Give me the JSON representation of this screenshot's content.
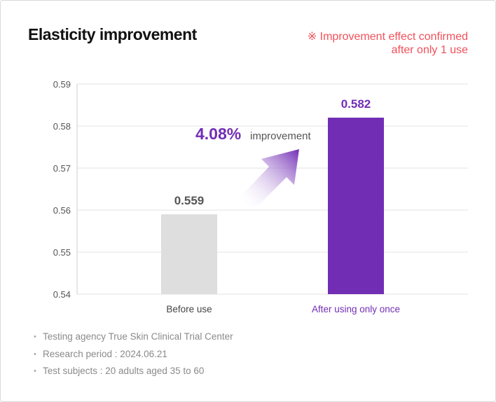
{
  "title": "Elasticity improvement",
  "note": {
    "mark": "※",
    "line1": "Improvement effect confirmed",
    "line2": "after only 1 use"
  },
  "colors": {
    "before_bar": "#dedede",
    "after_bar": "#722db5",
    "accent_purple": "#722db5",
    "note_red": "#f2505a"
  },
  "chart_data": {
    "type": "bar",
    "categories": [
      "Before use",
      "After using only once"
    ],
    "values": [
      0.559,
      0.582
    ],
    "value_labels": [
      "0.559",
      "0.582"
    ],
    "ylim": [
      0.54,
      0.59
    ],
    "yticks": [
      "0.59",
      "0.58",
      "0.57",
      "0.56",
      "0.55",
      "0.54"
    ],
    "ytick_values": [
      0.59,
      0.58,
      0.57,
      0.56,
      0.55,
      0.54
    ],
    "grid": true,
    "annotation": {
      "value": "4.08%",
      "text": "improvement"
    }
  },
  "footnotes": [
    "Testing agency True Skin Clinical Trial Center",
    "Research period : 2024.06.21",
    "Test subjects : 20 adults aged 35 to 60"
  ]
}
